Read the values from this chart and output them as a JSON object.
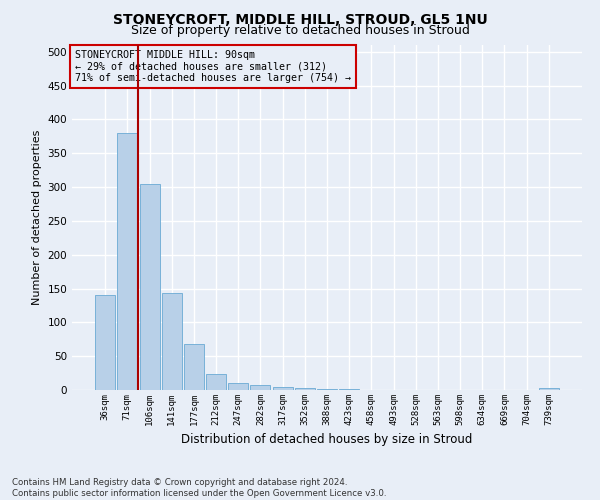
{
  "title": "STONEYCROFT, MIDDLE HILL, STROUD, GL5 1NU",
  "subtitle": "Size of property relative to detached houses in Stroud",
  "xlabel": "Distribution of detached houses by size in Stroud",
  "ylabel": "Number of detached properties",
  "footnote": "Contains HM Land Registry data © Crown copyright and database right 2024.\nContains public sector information licensed under the Open Government Licence v3.0.",
  "bar_color": "#b8d0e8",
  "bar_edge_color": "#6aaad4",
  "annotation_box_color": "#cc0000",
  "vline_color": "#aa0000",
  "bin_labels": [
    "36sqm",
    "71sqm",
    "106sqm",
    "141sqm",
    "177sqm",
    "212sqm",
    "247sqm",
    "282sqm",
    "317sqm",
    "352sqm",
    "388sqm",
    "423sqm",
    "458sqm",
    "493sqm",
    "528sqm",
    "563sqm",
    "598sqm",
    "634sqm",
    "669sqm",
    "704sqm",
    "739sqm"
  ],
  "bar_heights": [
    140,
    380,
    305,
    143,
    68,
    23,
    10,
    8,
    5,
    3,
    2,
    1,
    0,
    0,
    0,
    0,
    0,
    0,
    0,
    0,
    3
  ],
  "vline_pos": 1.5,
  "annotation_text": "STONEYCROFT MIDDLE HILL: 90sqm\n← 29% of detached houses are smaller (312)\n71% of semi-detached houses are larger (754) →",
  "ylim": [
    0,
    510
  ],
  "yticks": [
    0,
    50,
    100,
    150,
    200,
    250,
    300,
    350,
    400,
    450,
    500
  ],
  "background_color": "#e8eef7",
  "grid_color": "#ffffff",
  "title_fontsize": 10,
  "subtitle_fontsize": 9
}
